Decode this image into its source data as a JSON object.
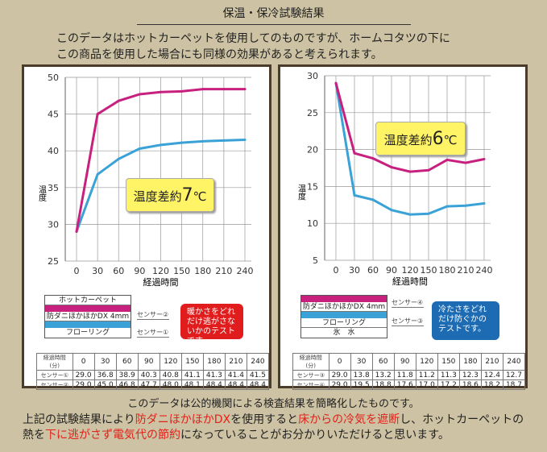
{
  "title": "保温・保冷試験結果",
  "intro": [
    "このデータはホットカーペットを使用してのものですが、ホームコタツの下に",
    "この商品を使用した場合にも同様の効果があると考えられます。"
  ],
  "chart_data": [
    {
      "type": "line",
      "ylabel": "温度",
      "xlabel": "経過時間",
      "ylim": [
        25,
        50
      ],
      "yticks": [
        25,
        30,
        35,
        40,
        45,
        50
      ],
      "x": [
        0,
        30,
        60,
        90,
        120,
        150,
        180,
        210,
        240
      ],
      "series": [
        {
          "name": "センサー①",
          "color": "#3aa2d6",
          "values": [
            29.0,
            36.8,
            38.9,
            40.3,
            40.8,
            41.1,
            41.3,
            41.4,
            41.5
          ]
        },
        {
          "name": "センサー②",
          "color": "#c8207f",
          "values": [
            29.0,
            45.0,
            46.8,
            47.7,
            48.0,
            48.1,
            48.4,
            48.4,
            48.4
          ]
        }
      ],
      "annotation": {
        "pre": "温度差約",
        "num": "7",
        "post": "℃"
      }
    },
    {
      "type": "line",
      "ylabel": "温度",
      "xlabel": "経過時間",
      "ylim": [
        5,
        30
      ],
      "yticks": [
        5,
        10,
        15,
        20,
        25,
        30
      ],
      "x": [
        0,
        30,
        60,
        90,
        120,
        150,
        180,
        210,
        240
      ],
      "series": [
        {
          "name": "センサー③",
          "color": "#3aa2d6",
          "values": [
            29.0,
            13.8,
            13.2,
            11.8,
            11.2,
            11.3,
            12.3,
            12.4,
            12.7
          ]
        },
        {
          "name": "センサー④",
          "color": "#c8207f",
          "values": [
            29.0,
            19.5,
            18.8,
            17.6,
            17.0,
            17.2,
            18.6,
            18.2,
            18.7
          ]
        }
      ],
      "annotation": {
        "pre": "温度差約",
        "num": "6",
        "post": "℃"
      }
    }
  ],
  "left_legend": {
    "layers": [
      "ホットカーペット",
      "防ダニほかほかDX 4mm",
      "フローリング"
    ],
    "sensor_top": "センサー②",
    "sensor_bottom": "センサー①",
    "note": "暖かさをどれだけ逃がさないかのテストです。",
    "table_header": "経過時間(分)"
  },
  "right_legend": {
    "layers": [
      "防ダニほかほかDX 4mm",
      "フローリング",
      "氷　水"
    ],
    "sensor_top": "センサー④",
    "sensor_bottom": "センサー③",
    "note": "冷たさをどれだけ防ぐかのテストです。",
    "table_header": "経過時間(分)"
  },
  "footer1": "このデータは公的機関による検査結果を簡略化したものです。",
  "footer2": {
    "a": "上記の試験結果により",
    "b": "防ダニほかほかDX",
    "c": "を使用すると",
    "d": "床からの冷気を遮断",
    "e": "し、ホットカーペットの",
    "f": "熱を",
    "g": "下に逃がさず電気代の節約",
    "h": "になっていることがお分かりいただけると思います。"
  }
}
